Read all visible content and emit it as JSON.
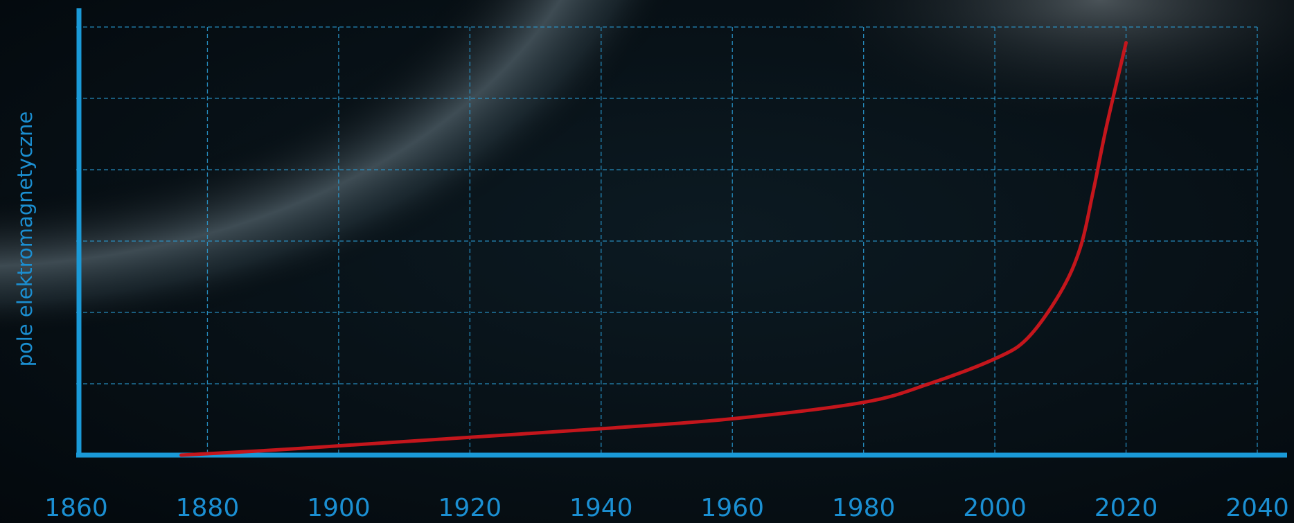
{
  "chart_data": {
    "type": "line",
    "y_label": "pole elektromagnetyczne",
    "x": [
      1876,
      1890,
      1900,
      1920,
      1940,
      1960,
      1980,
      1990,
      2000,
      2005,
      2010,
      2013,
      2015,
      2017,
      2020
    ],
    "series": [
      {
        "name": "pole",
        "color": "#c4161c",
        "values": [
          0,
          0.07,
          0.13,
          0.25,
          0.37,
          0.51,
          0.74,
          1.0,
          1.35,
          1.64,
          2.28,
          2.9,
          3.7,
          4.6,
          5.78
        ]
      }
    ],
    "xlim": [
      1860,
      2040
    ],
    "xticks": [
      1860,
      1880,
      1900,
      1920,
      1940,
      1960,
      1980,
      2000,
      2020,
      2040
    ],
    "ylim": [
      0,
      6
    ],
    "yticks": [
      0,
      1,
      2,
      3,
      4,
      5,
      6
    ],
    "grid": true,
    "axis_color": "#1a9ad8",
    "grid_color": "#2b9fd8"
  }
}
